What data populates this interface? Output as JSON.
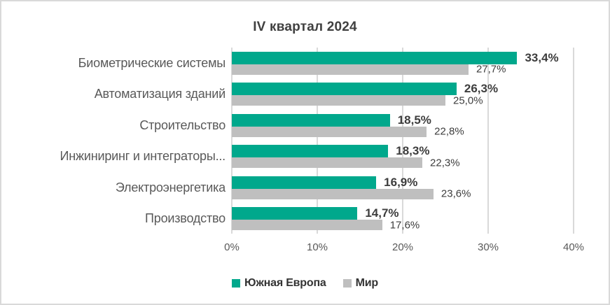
{
  "title": "IV квартал 2024",
  "colors": {
    "south_europe_bar": "#00A88C",
    "world_bar": "#BFBFBF",
    "gridline": "#D9D9D9",
    "title_text": "#404040",
    "category_text": "#595959",
    "value_text": "#3D3D3D"
  },
  "legend": [
    {
      "label": "Южная Европа",
      "color": "#00A88C"
    },
    {
      "label": "Мир",
      "color": "#BFBFBF"
    }
  ],
  "chart_data": {
    "type": "bar",
    "orientation": "horizontal",
    "title": "IV квартал 2024",
    "categories": [
      "Биометрические системы",
      "Автоматизация зданий",
      "Строительство",
      "Инжиниринг и интеграторы...",
      "Электроэнергетика",
      "Производство"
    ],
    "series": [
      {
        "name": "Южная Европа",
        "color": "#00A88C",
        "values": [
          33.4,
          26.3,
          18.5,
          18.3,
          16.9,
          14.7
        ],
        "labels": [
          "33,4%",
          "26,3%",
          "18,5%",
          "18,3%",
          "16,9%",
          "14,7%"
        ]
      },
      {
        "name": "Мир",
        "color": "#BFBFBF",
        "values": [
          27.7,
          25.0,
          22.8,
          22.3,
          23.6,
          17.6
        ],
        "labels": [
          "27,7%",
          "25,0%",
          "22,8%",
          "22,3%",
          "23,6%",
          "17,6%"
        ]
      }
    ],
    "xlim": [
      0,
      40
    ],
    "x_ticks": [
      "0%",
      "10%",
      "20%",
      "30%",
      "40%"
    ],
    "x_tick_positions_pct": [
      0,
      25,
      50,
      75,
      100
    ],
    "grid": true,
    "legend_position": "bottom"
  }
}
